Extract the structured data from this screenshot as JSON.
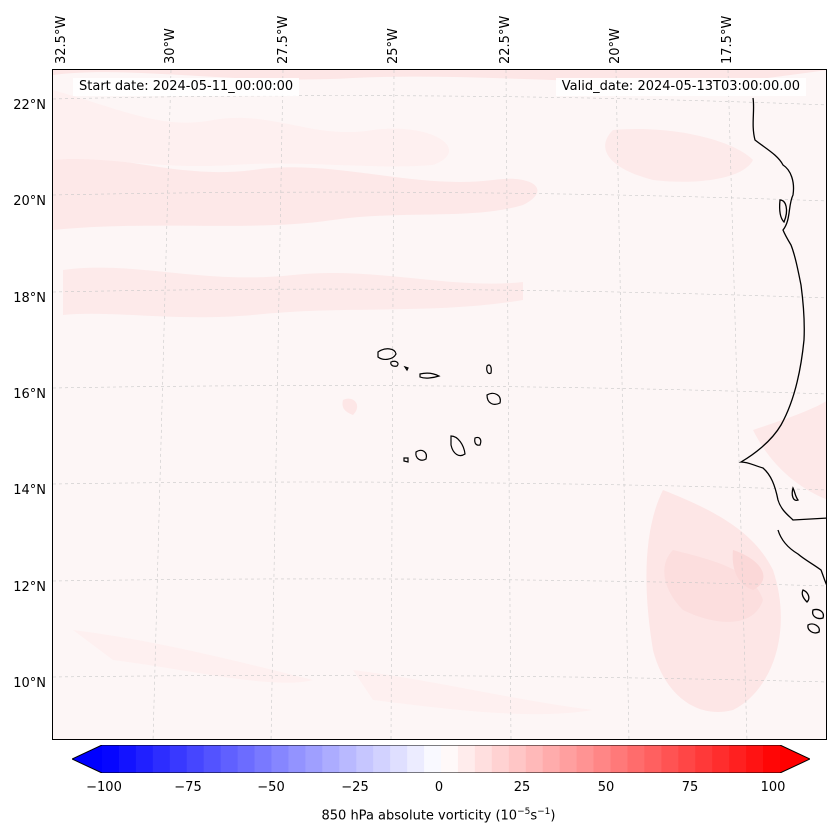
{
  "header": {
    "start_date": "Start date: 2024-05-11_00:00:00",
    "valid_date": "Valid_date: 2024-05-13T03:00:00.00"
  },
  "map": {
    "longitude_labels": [
      "32.5°W",
      "30°W",
      "27.5°W",
      "25°W",
      "22.5°W",
      "20°W",
      "17.5°W"
    ],
    "latitude_labels": [
      "22°N",
      "20°N",
      "18°N",
      "16°N",
      "14°N",
      "12°N",
      "10°N"
    ],
    "features": [
      "Cabo Verde islands",
      "West African coastline"
    ],
    "field": "850 hPa absolute vorticity"
  },
  "colorbar": {
    "ticks": [
      "−100",
      "−75",
      "−50",
      "−25",
      "0",
      "25",
      "50",
      "75",
      "100"
    ],
    "range": [
      -100,
      100
    ],
    "step": 5,
    "low_color": "#0000ff",
    "mid_color": "#ffffff",
    "high_color": "#ff0000",
    "label_prefix": "850 hPa absolute vorticity (10",
    "label_exp1": "−5",
    "label_mid": "s",
    "label_exp2": "−1",
    "label_suffix": ")"
  },
  "colors": {
    "background_field": "#fdf6f6",
    "light_positive": "#fde8e8",
    "moderate_positive": "#fcdede",
    "coastline": "#000000",
    "gridline": "#c8c8c8"
  }
}
